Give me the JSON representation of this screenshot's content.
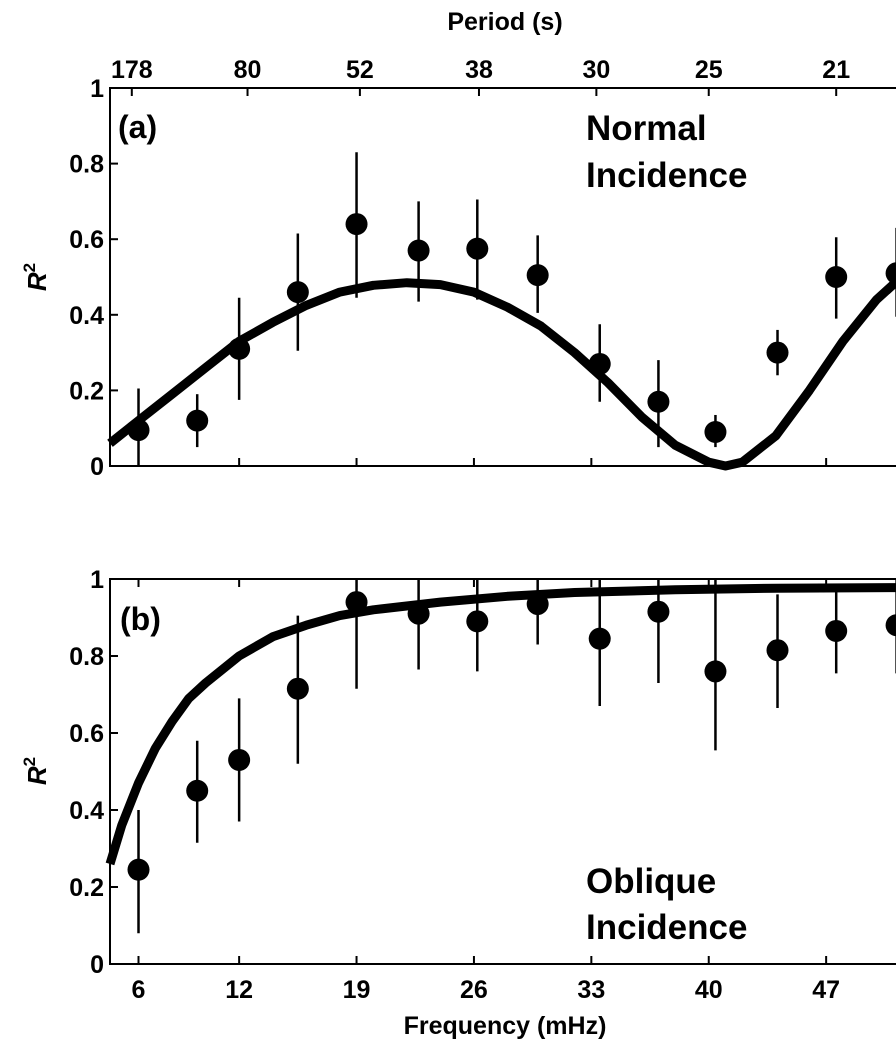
{
  "chart_data": [
    {
      "type": "scatter",
      "panel_label": "(a)",
      "annotation": [
        "Normal",
        "Incidence"
      ],
      "xlabel": "",
      "ylabel": "R",
      "ylabel_sup": "2",
      "top_axis_label": "Period (s)",
      "top_tick_labels": [
        {
          "x": 5.6,
          "label": "178"
        },
        {
          "x": 12.5,
          "label": "80"
        },
        {
          "x": 19.2,
          "label": "52"
        },
        {
          "x": 26.3,
          "label": "38"
        },
        {
          "x": 33.3,
          "label": "30"
        },
        {
          "x": 40.0,
          "label": "25"
        },
        {
          "x": 47.6,
          "label": "21"
        }
      ],
      "xlim": [
        4.3,
        52.0
      ],
      "ylim": [
        0,
        1
      ],
      "x_ticks": [
        6,
        12,
        19,
        26,
        33,
        40,
        47
      ],
      "y_ticks": [
        {
          "v": 0,
          "label": "0"
        },
        {
          "v": 0.2,
          "label": "0.2"
        },
        {
          "v": 0.4,
          "label": "0.4"
        },
        {
          "v": 0.6,
          "label": "0.6"
        },
        {
          "v": 0.8,
          "label": "0.8"
        },
        {
          "v": 1,
          "label": "1"
        }
      ],
      "points": [
        {
          "x": 6.0,
          "y": 0.095,
          "lo": 0.0,
          "hi": 0.205
        },
        {
          "x": 9.5,
          "y": 0.12,
          "lo": 0.05,
          "hi": 0.19
        },
        {
          "x": 12.0,
          "y": 0.31,
          "lo": 0.175,
          "hi": 0.445
        },
        {
          "x": 15.5,
          "y": 0.46,
          "lo": 0.305,
          "hi": 0.615
        },
        {
          "x": 19.0,
          "y": 0.64,
          "lo": 0.445,
          "hi": 0.83
        },
        {
          "x": 22.7,
          "y": 0.57,
          "lo": 0.435,
          "hi": 0.7
        },
        {
          "x": 26.2,
          "y": 0.575,
          "lo": 0.44,
          "hi": 0.705
        },
        {
          "x": 29.8,
          "y": 0.505,
          "lo": 0.405,
          "hi": 0.61
        },
        {
          "x": 33.5,
          "y": 0.27,
          "lo": 0.17,
          "hi": 0.375
        },
        {
          "x": 37.0,
          "y": 0.17,
          "lo": 0.05,
          "hi": 0.28
        },
        {
          "x": 40.4,
          "y": 0.09,
          "lo": 0.05,
          "hi": 0.135
        },
        {
          "x": 44.1,
          "y": 0.3,
          "lo": 0.24,
          "hi": 0.36
        },
        {
          "x": 47.6,
          "y": 0.5,
          "lo": 0.39,
          "hi": 0.605
        },
        {
          "x": 51.2,
          "y": 0.51,
          "lo": 0.395,
          "hi": 0.63
        }
      ],
      "fit_curve": {
        "x": [
          4.3,
          6,
          8,
          10,
          12,
          14,
          16,
          18,
          20,
          22,
          24,
          26,
          28,
          30,
          32,
          34,
          36,
          38,
          40,
          41,
          42,
          44,
          46,
          48,
          50,
          52
        ],
        "y": [
          0.06,
          0.12,
          0.19,
          0.26,
          0.33,
          0.38,
          0.425,
          0.46,
          0.478,
          0.485,
          0.48,
          0.46,
          0.42,
          0.37,
          0.3,
          0.22,
          0.13,
          0.055,
          0.01,
          0.0,
          0.01,
          0.08,
          0.2,
          0.33,
          0.44,
          0.52
        ]
      }
    },
    {
      "type": "scatter",
      "panel_label": "(b)",
      "annotation": [
        "Oblique",
        "Incidence"
      ],
      "xlabel": "Frequency (mHz)",
      "ylabel": "R",
      "ylabel_sup": "2",
      "xlim": [
        4.3,
        52.0
      ],
      "ylim": [
        0,
        1
      ],
      "x_ticks": [
        6,
        12,
        19,
        26,
        33,
        40,
        47
      ],
      "x_tick_labels": [
        "6",
        "12",
        "19",
        "26",
        "33",
        "40",
        "47"
      ],
      "y_ticks": [
        {
          "v": 0,
          "label": "0"
        },
        {
          "v": 0.2,
          "label": "0.2"
        },
        {
          "v": 0.4,
          "label": "0.4"
        },
        {
          "v": 0.6,
          "label": "0.6"
        },
        {
          "v": 0.8,
          "label": "0.8"
        },
        {
          "v": 1,
          "label": "1"
        }
      ],
      "points": [
        {
          "x": 6.0,
          "y": 0.245,
          "lo": 0.08,
          "hi": 0.4
        },
        {
          "x": 9.5,
          "y": 0.45,
          "lo": 0.315,
          "hi": 0.58
        },
        {
          "x": 12.0,
          "y": 0.53,
          "lo": 0.37,
          "hi": 0.69
        },
        {
          "x": 15.5,
          "y": 0.715,
          "lo": 0.52,
          "hi": 0.905
        },
        {
          "x": 19.0,
          "y": 0.94,
          "lo": 0.715,
          "hi": 1.0
        },
        {
          "x": 22.7,
          "y": 0.91,
          "lo": 0.765,
          "hi": 1.0
        },
        {
          "x": 26.2,
          "y": 0.89,
          "lo": 0.76,
          "hi": 1.0
        },
        {
          "x": 29.8,
          "y": 0.935,
          "lo": 0.83,
          "hi": 1.0
        },
        {
          "x": 33.5,
          "y": 0.845,
          "lo": 0.67,
          "hi": 1.0
        },
        {
          "x": 37.0,
          "y": 0.915,
          "lo": 0.73,
          "hi": 1.0
        },
        {
          "x": 40.4,
          "y": 0.76,
          "lo": 0.555,
          "hi": 1.0
        },
        {
          "x": 44.1,
          "y": 0.815,
          "lo": 0.665,
          "hi": 0.96
        },
        {
          "x": 47.6,
          "y": 0.865,
          "lo": 0.755,
          "hi": 0.975
        },
        {
          "x": 51.2,
          "y": 0.88,
          "lo": 0.755,
          "hi": 1.0
        }
      ],
      "fit_curve": {
        "x": [
          4.3,
          5,
          6,
          7,
          8,
          9,
          10,
          12,
          14,
          16,
          18,
          20,
          24,
          28,
          32,
          38,
          44,
          52
        ],
        "y": [
          0.26,
          0.36,
          0.47,
          0.56,
          0.63,
          0.69,
          0.73,
          0.8,
          0.85,
          0.88,
          0.905,
          0.92,
          0.94,
          0.955,
          0.965,
          0.972,
          0.976,
          0.978
        ]
      }
    }
  ]
}
